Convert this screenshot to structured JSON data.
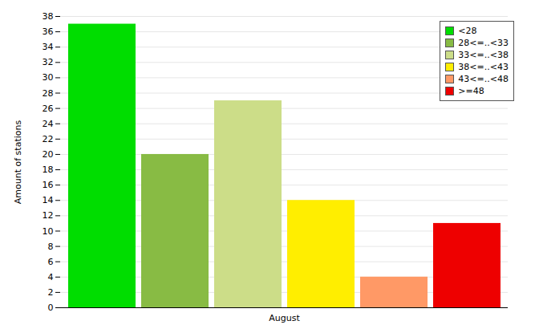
{
  "chart_data": {
    "type": "bar",
    "categories": [
      "August"
    ],
    "series": [
      {
        "name": "<28",
        "color": "#00dd00",
        "values": [
          37
        ]
      },
      {
        "name": "28<=..<33",
        "color": "#88bb44",
        "values": [
          20
        ]
      },
      {
        "name": "33<=..<38",
        "color": "#ccdd88",
        "values": [
          27
        ]
      },
      {
        "name": "38<=..<43",
        "color": "#ffee00",
        "values": [
          14
        ]
      },
      {
        "name": "43<=..<48",
        "color": "#ff9966",
        "values": [
          4
        ]
      },
      {
        "name": ">=48",
        "color": "#ee0000",
        "values": [
          11
        ]
      }
    ],
    "ylabel": "Amount of stations",
    "ylim": [
      0,
      38
    ],
    "yticks": [
      0,
      2,
      4,
      6,
      8,
      10,
      12,
      14,
      16,
      18,
      20,
      22,
      24,
      26,
      28,
      30,
      32,
      34,
      36,
      38
    ],
    "grid": true,
    "legend": "upper right"
  }
}
